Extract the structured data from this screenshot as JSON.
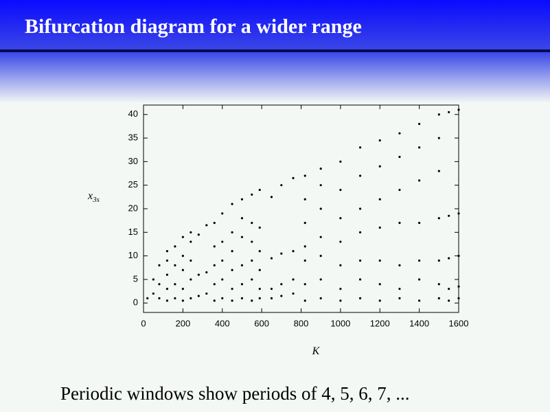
{
  "slide": {
    "title": "Bifurcation diagram for a wider range",
    "caption": "Periodic windows show periods of 4, 5, 6, 7, ..."
  },
  "chart_data": {
    "type": "scatter",
    "color": "#000000",
    "xlabel": "K",
    "ylabel": {
      "text": "x",
      "subscript": "3s"
    },
    "x": [
      20,
      50,
      50,
      80,
      80,
      80,
      120,
      120,
      120,
      120,
      120,
      160,
      160,
      160,
      160,
      200,
      200,
      200,
      200,
      200,
      240,
      240,
      240,
      240,
      240,
      280,
      280,
      280,
      320,
      320,
      320,
      360,
      360,
      360,
      360,
      360,
      400,
      400,
      400,
      400,
      400,
      450,
      450,
      450,
      450,
      450,
      450,
      500,
      500,
      500,
      500,
      500,
      500,
      550,
      550,
      550,
      550,
      550,
      550,
      590,
      590,
      590,
      590,
      590,
      590,
      650,
      650,
      650,
      650,
      700,
      700,
      700,
      700,
      760,
      760,
      760,
      760,
      820,
      820,
      820,
      820,
      820,
      820,
      820,
      900,
      900,
      900,
      900,
      900,
      900,
      900,
      1000,
      1000,
      1000,
      1000,
      1000,
      1000,
      1000,
      1100,
      1100,
      1100,
      1100,
      1100,
      1100,
      1100,
      1200,
      1200,
      1200,
      1200,
      1200,
      1200,
      1200,
      1300,
      1300,
      1300,
      1300,
      1300,
      1300,
      1300,
      1400,
      1400,
      1400,
      1400,
      1400,
      1400,
      1400,
      1500,
      1500,
      1500,
      1500,
      1500,
      1500,
      1500,
      1550,
      1550,
      1550,
      1550,
      1550,
      1600,
      1600,
      1600,
      1600,
      1600
    ],
    "values": [
      1,
      2,
      5,
      1,
      4,
      8,
      0.5,
      3,
      6,
      9,
      11,
      1,
      4,
      8,
      12,
      0.5,
      3,
      7,
      10,
      14,
      1,
      5,
      9,
      13,
      15,
      1.5,
      6,
      14.5,
      2,
      6.5,
      16.5,
      0.5,
      4,
      8,
      12,
      17,
      1,
      5,
      9,
      13,
      19,
      0.5,
      3,
      7,
      11,
      15,
      21,
      1,
      4,
      8,
      14,
      18,
      22,
      0.5,
      5,
      9,
      13,
      17,
      23,
      1,
      3,
      7,
      11,
      16,
      24,
      1,
      3,
      9.5,
      22.5,
      1.5,
      4,
      10.5,
      25,
      2,
      5,
      11,
      26.5,
      0.5,
      4,
      9,
      12,
      17,
      22,
      27,
      1,
      5,
      10,
      14,
      20,
      25,
      28.5,
      0.5,
      3,
      8,
      13,
      18,
      24,
      30,
      1,
      5,
      9,
      15,
      20,
      27,
      33,
      0.5,
      4,
      9,
      16,
      22,
      29,
      34.5,
      1,
      3,
      8,
      17,
      24,
      31,
      36,
      0.5,
      5,
      9,
      17,
      26,
      33,
      38,
      1,
      4,
      9,
      18,
      28,
      35,
      40,
      0.5,
      3,
      9.5,
      18.5,
      40.5,
      1,
      3.5,
      10,
      19,
      41
    ],
    "xlim": [
      0,
      1600
    ],
    "ylim": [
      -2,
      42
    ],
    "xticks": [
      0,
      200,
      400,
      600,
      800,
      1000,
      1200,
      1400,
      1600
    ],
    "yticks": [
      0,
      5,
      10,
      15,
      20,
      25,
      30,
      35,
      40
    ]
  }
}
